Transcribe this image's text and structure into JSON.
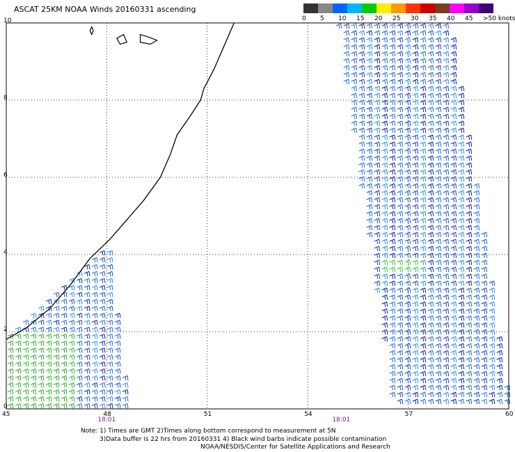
{
  "title": "ASCAT 25KM NOAA Winds 20160331 ascending",
  "legend": {
    "labels": [
      "0",
      "5",
      "10",
      "15",
      "20",
      "25",
      "30",
      "35",
      "40",
      "45",
      ">50 knots"
    ],
    "colors": [
      "#333333",
      "#888888",
      "#0066ff",
      "#00b7ff",
      "#00cc00",
      "#ffee00",
      "#ff9900",
      "#ff3300",
      "#cc0000",
      "#7a3b1e",
      "#ff00ff",
      "#9900cc",
      "#3d007a"
    ]
  },
  "axes": {
    "x_ticks": [
      45,
      48,
      51,
      54,
      57,
      60
    ],
    "x_tick_labels": [
      "45",
      "48",
      "51",
      "54",
      "57",
      "60"
    ],
    "y_ticks": [
      0,
      2,
      4,
      6,
      8,
      10
    ],
    "y_tick_labels": [
      "0",
      "2",
      "4",
      "6",
      "8",
      "10"
    ],
    "xlim": [
      45,
      60
    ],
    "ylim": [
      0,
      10
    ]
  },
  "pass_times": [
    {
      "label": "18:01",
      "lon": 48.0
    },
    {
      "label": "18:01",
      "lon": 55.0
    }
  ],
  "swaths": [
    {
      "name": "west",
      "corners": [
        [
          48.0,
          4.3
        ],
        [
          48.6,
          0.0
        ],
        [
          45.0,
          0.0
        ],
        [
          45.0,
          1.9
        ]
      ]
    },
    {
      "name": "east",
      "corners": [
        [
          54.8,
          10.0
        ],
        [
          58.2,
          10.0
        ],
        [
          60.0,
          0.0
        ],
        [
          56.5,
          0.0
        ]
      ]
    }
  ],
  "coastline": [
    [
      45.0,
      1.8
    ],
    [
      45.6,
      2.1
    ],
    [
      46.3,
      2.6
    ],
    [
      46.9,
      3.2
    ],
    [
      47.5,
      3.9
    ],
    [
      48.1,
      4.4
    ],
    [
      48.6,
      4.9
    ],
    [
      49.1,
      5.4
    ],
    [
      49.6,
      6.0
    ],
    [
      49.9,
      6.6
    ],
    [
      50.1,
      7.1
    ],
    [
      50.5,
      7.6
    ],
    [
      50.8,
      8.0
    ],
    [
      50.9,
      8.3
    ],
    [
      51.2,
      8.8
    ],
    [
      51.4,
      9.2
    ],
    [
      51.6,
      9.6
    ],
    [
      51.8,
      10.0
    ]
  ],
  "islands": [
    [
      [
        47.5,
        9.8
      ],
      [
        47.55,
        9.7
      ],
      [
        47.6,
        9.8
      ],
      [
        47.55,
        9.9
      ]
    ],
    [
      [
        48.3,
        9.6
      ],
      [
        48.5,
        9.7
      ],
      [
        48.6,
        9.5
      ],
      [
        48.4,
        9.45
      ]
    ],
    [
      [
        49.0,
        9.7
      ],
      [
        49.2,
        9.65
      ],
      [
        49.5,
        9.55
      ],
      [
        49.3,
        9.45
      ],
      [
        49.0,
        9.5
      ]
    ]
  ],
  "notes": [
    "Note: 1) Times are GMT 2)Times along bottom correspond to measurement at 5N",
    "3)Data buffer is 22 hrs from 20160331 4) Black wind barbs indicate possible contamination",
    "NOAA/NESDIS/Center for Satellite Applications and Research"
  ]
}
